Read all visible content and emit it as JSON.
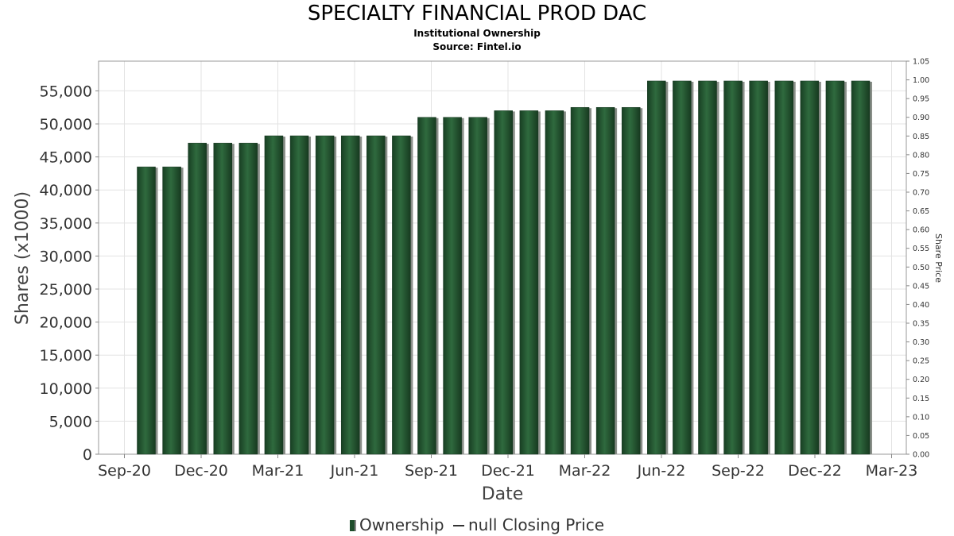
{
  "title": "SPECIALTY FINANCIAL PROD DAC",
  "subtitle": "Institutional Ownership",
  "source": "Source: Fintel.io",
  "legend": {
    "ownership": "Ownership",
    "price": "null Closing Price"
  },
  "colors": {
    "bar": "#1e4d2b",
    "bar_highlight": "#2f6a3e",
    "bar_shadow": "#8a8f89",
    "grid": "#e3e3e3"
  },
  "chart_data": {
    "type": "bar",
    "xlabel": "Date",
    "ylabel": "Shares (x1000)",
    "y2label": "Share Price",
    "ylim": [
      0,
      59500
    ],
    "y2lim": [
      0,
      1.05
    ],
    "yticks": [
      "0",
      "5,000",
      "10,000",
      "15,000",
      "20,000",
      "25,000",
      "30,000",
      "35,000",
      "40,000",
      "45,000",
      "50,000",
      "55,000"
    ],
    "y2ticks": [
      "0.00",
      "0.05",
      "0.10",
      "0.15",
      "0.20",
      "0.25",
      "0.30",
      "0.35",
      "0.40",
      "0.45",
      "0.50",
      "0.55",
      "0.60",
      "0.65",
      "0.70",
      "0.75",
      "0.80",
      "0.85",
      "0.90",
      "0.95",
      "1.00",
      "1.05"
    ],
    "xticks": [
      "Sep-20",
      "Dec-20",
      "Mar-21",
      "Jun-21",
      "Sep-21",
      "Dec-21",
      "Mar-22",
      "Jun-22",
      "Sep-22",
      "Dec-22",
      "Mar-23"
    ],
    "series": [
      {
        "name": "Ownership",
        "values": [
          43500,
          43500,
          47100,
          47100,
          47100,
          48200,
          48200,
          48200,
          48200,
          48200,
          48200,
          51000,
          51000,
          51000,
          52000,
          52000,
          52000,
          52500,
          52500,
          52500,
          56500,
          56500,
          56500,
          56500,
          56500,
          56500,
          56500,
          56500,
          56500
        ]
      }
    ]
  }
}
